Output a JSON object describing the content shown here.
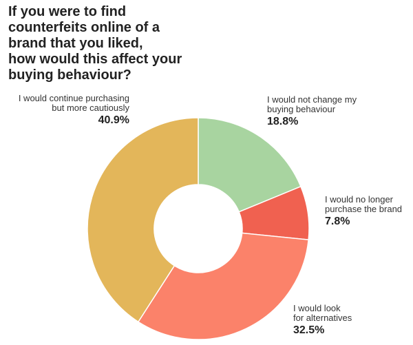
{
  "title_lines": [
    "If you were to find",
    "counterfeits online of a",
    "brand that you liked,",
    "how would this affect your",
    "buying behaviour?"
  ],
  "chart_data": {
    "type": "pie",
    "donut": true,
    "title": "If you were to find counterfeits online of a brand that you liked, how would this affect your buying behaviour?",
    "slices": [
      {
        "label_lines": [
          "I would not change my",
          "buying behaviour"
        ],
        "label": "I would not change my buying behaviour",
        "value": 18.8,
        "display": "18.8%",
        "color": "#a8d4a0"
      },
      {
        "label_lines": [
          "I would no longer",
          "purchase the brand"
        ],
        "label": "I would no longer purchase the brand",
        "value": 7.8,
        "display": "7.8%",
        "color": "#f06150"
      },
      {
        "label_lines": [
          "I would look",
          "for alternatives"
        ],
        "label": "I would look for alternatives",
        "value": 32.5,
        "display": "32.5%",
        "color": "#fb826a"
      },
      {
        "label_lines": [
          "I would continue purchasing",
          "but more cautiously"
        ],
        "label": "I would continue purchasing but more cautiously",
        "value": 40.9,
        "display": "40.9%",
        "color": "#e3b65a"
      }
    ]
  }
}
